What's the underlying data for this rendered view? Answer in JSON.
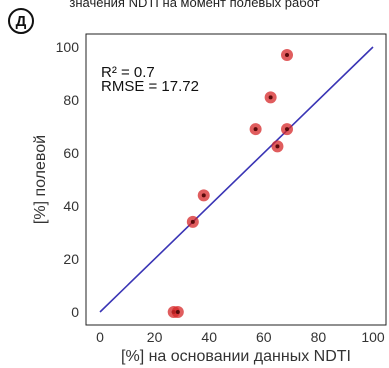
{
  "caption": "значения NDTI на момент полевых работ",
  "panel_label": "Д",
  "chart_data": {
    "type": "scatter",
    "xlabel": "[%] на основании данных NDTI",
    "ylabel": "[%] полевой",
    "xlim": [
      0,
      100
    ],
    "ylim": [
      0,
      100
    ],
    "x_ticks": [
      0,
      20,
      40,
      60,
      80,
      100
    ],
    "y_ticks": [
      0,
      20,
      40,
      60,
      80,
      100
    ],
    "grid": false,
    "annotations": [
      "R² = 0.7",
      "RMSE = 17.72"
    ],
    "series": [
      {
        "type": "scatter",
        "color": "#d62728",
        "points": [
          {
            "x": 27,
            "y": 0
          },
          {
            "x": 28.5,
            "y": 0
          },
          {
            "x": 34,
            "y": 34
          },
          {
            "x": 38,
            "y": 44
          },
          {
            "x": 57,
            "y": 69
          },
          {
            "x": 62.5,
            "y": 81
          },
          {
            "x": 65,
            "y": 62.5
          },
          {
            "x": 68.5,
            "y": 69
          },
          {
            "x": 68.5,
            "y": 97
          }
        ]
      },
      {
        "type": "line",
        "color": "#3a35b5",
        "points": [
          {
            "x": 0,
            "y": 0
          },
          {
            "x": 100,
            "y": 100
          }
        ]
      }
    ]
  }
}
